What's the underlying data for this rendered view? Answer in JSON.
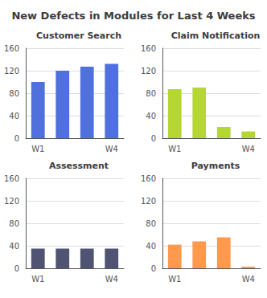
{
  "title": "New Defects in Modules for Last 4 Weeks",
  "chart_data": [
    {
      "type": "bar",
      "title": "Customer Search",
      "categories": [
        "W1",
        null,
        null,
        "W4"
      ],
      "values": [
        100,
        120,
        127,
        132
      ],
      "ylim": [
        0,
        160
      ],
      "yticks": [
        0,
        40,
        80,
        120,
        160
      ],
      "grid": true
    },
    {
      "type": "bar",
      "title": "Claim Notification",
      "categories": [
        "W1",
        null,
        null,
        "W4"
      ],
      "values": [
        87,
        90,
        20,
        12
      ],
      "ylim": [
        0,
        160
      ],
      "yticks": [
        0,
        40,
        80,
        120,
        160
      ],
      "grid": true
    },
    {
      "type": "bar",
      "title": "Assessment",
      "categories": [
        "W1",
        null,
        null,
        "W4"
      ],
      "values": [
        35,
        35,
        35,
        35
      ],
      "ylim": [
        0,
        160
      ],
      "yticks": [
        0,
        40,
        80,
        120,
        160
      ],
      "grid": true
    },
    {
      "type": "bar",
      "title": "Payments",
      "categories": [
        "W1",
        null,
        null,
        "W4"
      ],
      "values": [
        42,
        48,
        55,
        3
      ],
      "ylim": [
        0,
        160
      ],
      "yticks": [
        0,
        40,
        80,
        120,
        160
      ],
      "grid": true
    }
  ]
}
